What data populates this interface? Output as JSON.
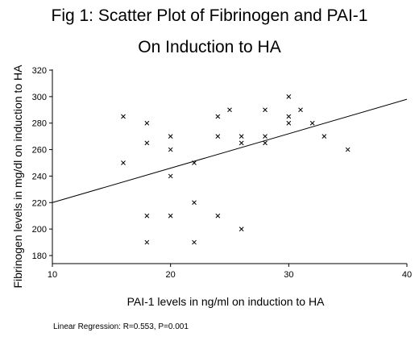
{
  "chart_data": {
    "type": "scatter",
    "title_lines": [
      "Fig 1: Scatter Plot of Fibrinogen and PAI-1",
      "On Induction to HA"
    ],
    "xlabel": "PAI-1 levels in ng/ml on induction to HA",
    "ylabel": "Fibrinogen levels in mg/dl on induction to HA",
    "xlim": [
      10,
      40
    ],
    "ylim": [
      175,
      320
    ],
    "x_ticks": [
      "10",
      "20",
      "30",
      "40"
    ],
    "y_ticks": [
      "180",
      "200",
      "220",
      "240",
      "260",
      "280",
      "300",
      "320"
    ],
    "grid": false,
    "marker": "x",
    "points": [
      {
        "x": 16,
        "y": 285
      },
      {
        "x": 16,
        "y": 250
      },
      {
        "x": 18,
        "y": 280
      },
      {
        "x": 18,
        "y": 265
      },
      {
        "x": 18,
        "y": 210
      },
      {
        "x": 18,
        "y": 190
      },
      {
        "x": 20,
        "y": 270
      },
      {
        "x": 20,
        "y": 260
      },
      {
        "x": 20,
        "y": 240
      },
      {
        "x": 20,
        "y": 210
      },
      {
        "x": 22,
        "y": 250
      },
      {
        "x": 22,
        "y": 220
      },
      {
        "x": 22,
        "y": 190
      },
      {
        "x": 24,
        "y": 285
      },
      {
        "x": 24,
        "y": 270
      },
      {
        "x": 24,
        "y": 210
      },
      {
        "x": 25,
        "y": 290
      },
      {
        "x": 26,
        "y": 270
      },
      {
        "x": 26,
        "y": 265
      },
      {
        "x": 26,
        "y": 200
      },
      {
        "x": 28,
        "y": 290
      },
      {
        "x": 28,
        "y": 270
      },
      {
        "x": 28,
        "y": 265
      },
      {
        "x": 30,
        "y": 300
      },
      {
        "x": 30,
        "y": 285
      },
      {
        "x": 30,
        "y": 280
      },
      {
        "x": 31,
        "y": 290
      },
      {
        "x": 32,
        "y": 280
      },
      {
        "x": 33,
        "y": 270
      },
      {
        "x": 35,
        "y": 260
      }
    ],
    "regression_line": {
      "x": [
        10,
        40
      ],
      "y": [
        220,
        298
      ]
    },
    "footnote": "Linear Regression: R=0.553, P=0.001"
  }
}
